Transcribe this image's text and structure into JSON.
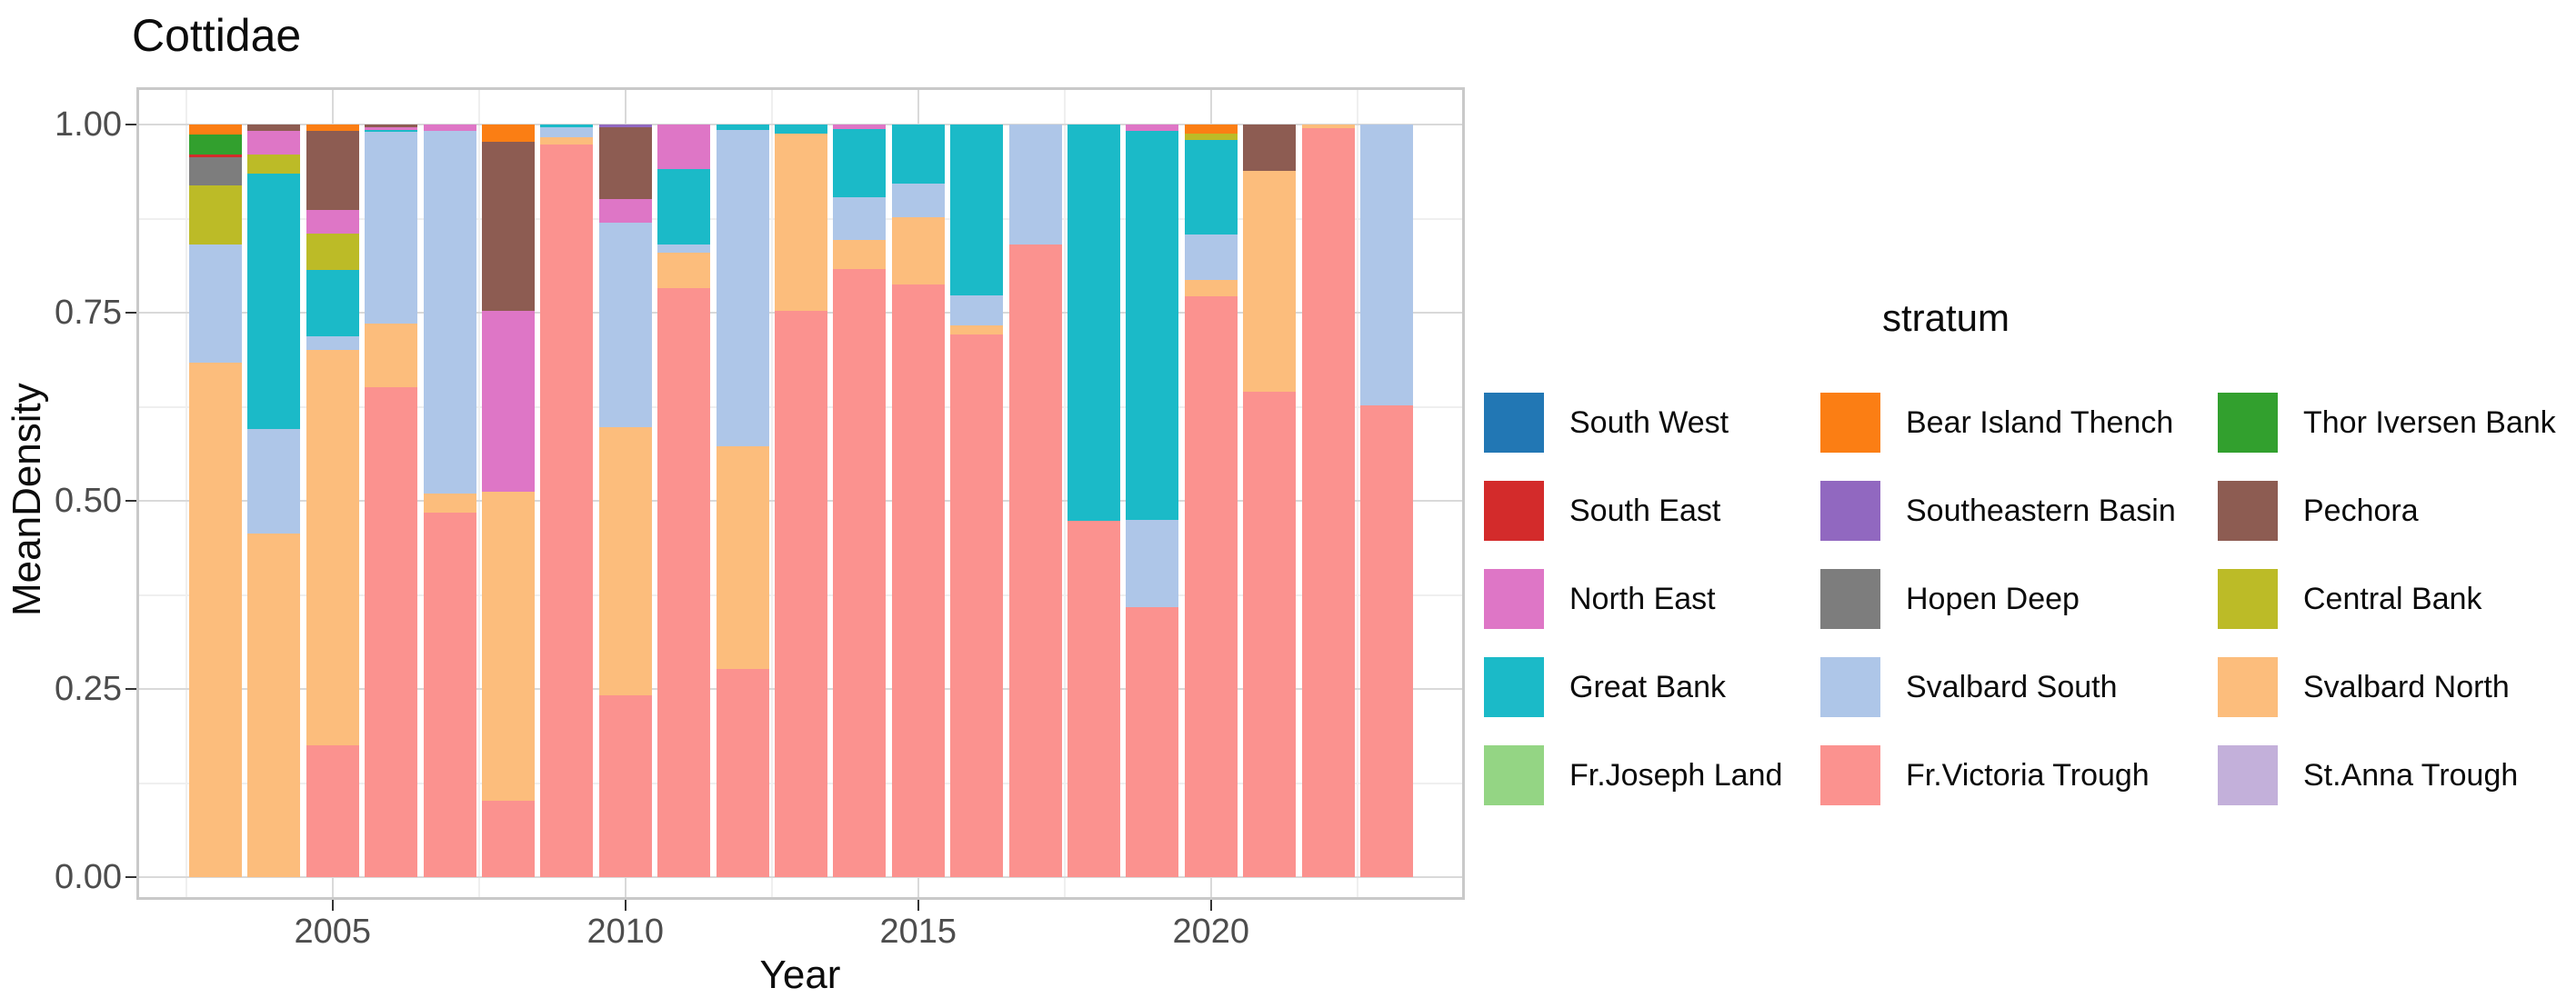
{
  "title": "Cottidae",
  "axes": {
    "x_title": "Year",
    "y_title": "MeanDensity",
    "x_ticks": [
      "2005",
      "2010",
      "2015",
      "2020"
    ],
    "x_tick_years": [
      2005,
      2010,
      2015,
      2020
    ],
    "y_ticks": [
      "1.00",
      "0.75",
      "0.50",
      "0.25",
      "0.00"
    ],
    "y_tick_values": [
      1.0,
      0.75,
      0.5,
      0.25,
      0.0
    ]
  },
  "legend": {
    "title": "stratum",
    "columns": [
      [
        "South West",
        "South East",
        "North East",
        "Great Bank",
        "Fr.Joseph Land"
      ],
      [
        "Bear Island Thench",
        "Southeastern Basin",
        "Hopen Deep",
        "Svalbard South",
        "Fr.Victoria Trough"
      ],
      [
        "Thor Iversen Bank",
        "Pechora",
        "Central Bank",
        "Svalbard North",
        "St.Anna Trough"
      ]
    ]
  },
  "colors": {
    "South West": "#2277b4",
    "South East": "#d32b2b",
    "North East": "#de76c6",
    "Great Bank": "#1bbac8",
    "Fr.Joseph Land": "#94d584",
    "Bear Island Thench": "#fb7e14",
    "Southeastern Basin": "#9168c0",
    "Hopen Deep": "#7d7d7d",
    "Svalbard South": "#aec6e8",
    "Fr.Victoria Trough": "#fb928f",
    "Thor Iversen Bank": "#32a02e",
    "Pechora": "#8d5c52",
    "Central Bank": "#bcbb27",
    "Svalbard North": "#fcbd7c",
    "St.Anna Trough": "#c3b0da",
    "grid_major": "#d9d9d9",
    "grid_minor": "#efefef",
    "panel_border": "#c9c9c9",
    "tick_text": "#4d4d4d"
  },
  "chart_data": {
    "type": "bar",
    "variant": "stacked-proportional",
    "title": "Cottidae",
    "xlabel": "Year",
    "ylabel": "MeanDensity",
    "ylim": [
      0,
      1
    ],
    "grid": true,
    "legend_position": "right",
    "stack_order_top_to_bottom": [
      "Bear Island Thench",
      "Southeastern Basin",
      "Thor Iversen Bank",
      "South East",
      "Hopen Deep",
      "Pechora",
      "North East",
      "Central Bank",
      "Great Bank",
      "Svalbard South",
      "Svalbard North",
      "Fr.Victoria Trough"
    ],
    "bars": [
      {
        "year": 2003,
        "segments": [
          [
            "Bear Island Thench",
            0.013
          ],
          [
            "Thor Iversen Bank",
            0.027
          ],
          [
            "South East",
            0.004
          ],
          [
            "Hopen Deep",
            0.037
          ],
          [
            "Central Bank",
            0.079
          ],
          [
            "Svalbard South",
            0.156
          ],
          [
            "Svalbard North",
            0.684
          ]
        ]
      },
      {
        "year": 2004,
        "segments": [
          [
            "Pechora",
            0.009
          ],
          [
            "North East",
            0.031
          ],
          [
            "Central Bank",
            0.025
          ],
          [
            "Great Bank",
            0.34
          ],
          [
            "Svalbard South",
            0.138
          ],
          [
            "Svalbard North",
            0.457
          ]
        ]
      },
      {
        "year": 2005,
        "segments": [
          [
            "Bear Island Thench",
            0.008
          ],
          [
            "Pechora",
            0.105
          ],
          [
            "North East",
            0.032
          ],
          [
            "Central Bank",
            0.048
          ],
          [
            "Great Bank",
            0.088
          ],
          [
            "Svalbard South",
            0.019
          ],
          [
            "Svalbard North",
            0.525
          ],
          [
            "Fr.Victoria Trough",
            0.175
          ]
        ]
      },
      {
        "year": 2006,
        "segments": [
          [
            "Pechora",
            0.004
          ],
          [
            "North East",
            0.003
          ],
          [
            "Great Bank",
            0.003
          ],
          [
            "Svalbard South",
            0.255
          ],
          [
            "Svalbard North",
            0.084
          ],
          [
            "Fr.Victoria Trough",
            0.651
          ]
        ]
      },
      {
        "year": 2007,
        "segments": [
          [
            "North East",
            0.008
          ],
          [
            "Svalbard South",
            0.482
          ],
          [
            "Svalbard North",
            0.026
          ],
          [
            "Fr.Victoria Trough",
            0.484
          ]
        ]
      },
      {
        "year": 2008,
        "segments": [
          [
            "Bear Island Thench",
            0.023
          ],
          [
            "Pechora",
            0.225
          ],
          [
            "North East",
            0.24
          ],
          [
            "Svalbard North",
            0.411
          ],
          [
            "Fr.Victoria Trough",
            0.101
          ]
        ]
      },
      {
        "year": 2009,
        "segments": [
          [
            "Great Bank",
            0.004
          ],
          [
            "Svalbard South",
            0.013
          ],
          [
            "Svalbard North",
            0.01
          ],
          [
            "Fr.Victoria Trough",
            0.973
          ]
        ]
      },
      {
        "year": 2010,
        "segments": [
          [
            "Southeastern Basin",
            0.004
          ],
          [
            "Pechora",
            0.095
          ],
          [
            "North East",
            0.031
          ],
          [
            "Svalbard South",
            0.272
          ],
          [
            "Svalbard North",
            0.357
          ],
          [
            "Fr.Victoria Trough",
            0.241
          ]
        ]
      },
      {
        "year": 2011,
        "segments": [
          [
            "North East",
            0.059
          ],
          [
            "Great Bank",
            0.1
          ],
          [
            "Svalbard South",
            0.011
          ],
          [
            "Svalbard North",
            0.048
          ],
          [
            "Fr.Victoria Trough",
            0.782
          ]
        ]
      },
      {
        "year": 2012,
        "segments": [
          [
            "Great Bank",
            0.007
          ],
          [
            "Svalbard South",
            0.42
          ],
          [
            "Svalbard North",
            0.296
          ],
          [
            "Fr.Victoria Trough",
            0.277
          ]
        ]
      },
      {
        "year": 2013,
        "segments": [
          [
            "Great Bank",
            0.012
          ],
          [
            "Svalbard North",
            0.235
          ],
          [
            "Fr.Victoria Trough",
            0.753
          ]
        ]
      },
      {
        "year": 2014,
        "segments": [
          [
            "North East",
            0.006
          ],
          [
            "Great Bank",
            0.091
          ],
          [
            "Svalbard South",
            0.056
          ],
          [
            "Svalbard North",
            0.039
          ],
          [
            "Fr.Victoria Trough",
            0.808
          ]
        ]
      },
      {
        "year": 2015,
        "segments": [
          [
            "Great Bank",
            0.078
          ],
          [
            "Svalbard South",
            0.045
          ],
          [
            "Svalbard North",
            0.089
          ],
          [
            "Fr.Victoria Trough",
            0.788
          ]
        ]
      },
      {
        "year": 2016,
        "segments": [
          [
            "Great Bank",
            0.227
          ],
          [
            "Svalbard South",
            0.04
          ],
          [
            "Svalbard North",
            0.012
          ],
          [
            "Fr.Victoria Trough",
            0.721
          ]
        ]
      },
      {
        "year": 2017,
        "segments": [
          [
            "Svalbard South",
            0.159
          ],
          [
            "Fr.Victoria Trough",
            0.841
          ]
        ]
      },
      {
        "year": 2018,
        "segments": [
          [
            "Great Bank",
            0.527
          ],
          [
            "Fr.Victoria Trough",
            0.473
          ]
        ]
      },
      {
        "year": 2019,
        "segments": [
          [
            "North East",
            0.008
          ],
          [
            "Great Bank",
            0.517
          ],
          [
            "Svalbard South",
            0.116
          ],
          [
            "Fr.Victoria Trough",
            0.359
          ]
        ]
      },
      {
        "year": 2020,
        "segments": [
          [
            "Bear Island Thench",
            0.012
          ],
          [
            "Central Bank",
            0.008
          ],
          [
            "Great Bank",
            0.126
          ],
          [
            "Svalbard South",
            0.06
          ],
          [
            "Svalbard North",
            0.022
          ],
          [
            "Fr.Victoria Trough",
            0.772
          ]
        ]
      },
      {
        "year": 2021,
        "segments": [
          [
            "Pechora",
            0.061
          ],
          [
            "Svalbard North",
            0.294
          ],
          [
            "Fr.Victoria Trough",
            0.645
          ]
        ]
      },
      {
        "year": 2022,
        "segments": [
          [
            "Svalbard North",
            0.005
          ],
          [
            "Fr.Victoria Trough",
            0.995
          ]
        ]
      },
      {
        "year": 2023,
        "segments": [
          [
            "Svalbard South",
            0.373
          ],
          [
            "Fr.Victoria Trough",
            0.627
          ]
        ]
      }
    ]
  }
}
